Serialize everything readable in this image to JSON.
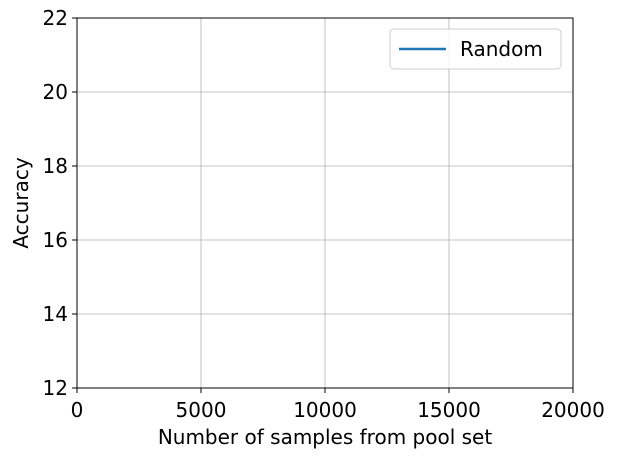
{
  "chart_data": {
    "type": "line",
    "title": "",
    "xlabel": "Number of samples from pool set",
    "ylabel": "Accuracy",
    "xlim": [
      0,
      20000
    ],
    "ylim": [
      12,
      22
    ],
    "xticks": [
      0,
      5000,
      10000,
      15000,
      20000
    ],
    "yticks": [
      12,
      14,
      16,
      18,
      20,
      22
    ],
    "xtick_labels": [
      "0",
      "5000",
      "10000",
      "15000",
      "20000"
    ],
    "ytick_labels": [
      "12",
      "14",
      "16",
      "18",
      "20",
      "22"
    ],
    "grid": true,
    "legend_position": "top-right",
    "series": [
      {
        "name": "Random",
        "color": "#1f77b4",
        "x": [],
        "y": []
      }
    ]
  }
}
